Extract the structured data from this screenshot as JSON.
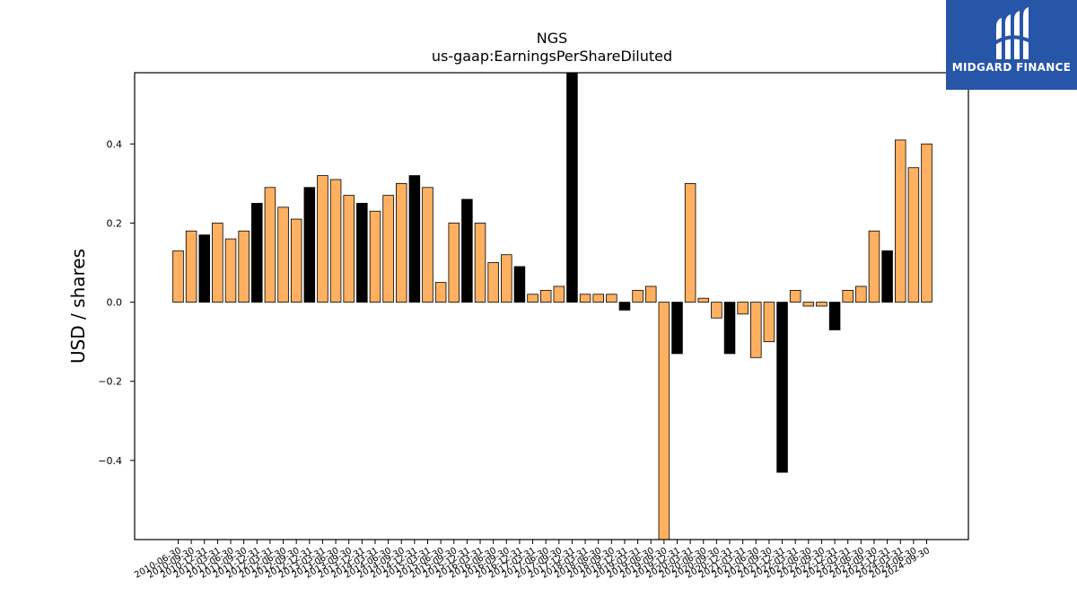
{
  "logo": {
    "text": "MIDGARD FINANCE",
    "icon": "midgard-m-logo-icon",
    "background": "#2756a8"
  },
  "chart_data": {
    "type": "bar",
    "title": "NGS",
    "subtitle": "us-gaap:EarningsPerShareDiluted",
    "ylabel": "USD / shares",
    "xlabel": "",
    "ylim": [
      -0.6,
      0.58
    ],
    "yticks": [
      -0.4,
      -0.2,
      0.0,
      0.2,
      0.4
    ],
    "ytick_labels": [
      "−0.4",
      "−0.2",
      "0.0",
      "0.2",
      "0.4"
    ],
    "colors": {
      "annual": "#000000",
      "quarter": "#ffb060"
    },
    "categories": [
      "2010-06-30",
      "2010-09-30",
      "2010-12-31",
      "2011-03-31",
      "2011-06-30",
      "2011-09-30",
      "2011-12-31",
      "2012-03-31",
      "2012-06-30",
      "2012-09-30",
      "2012-12-31",
      "2013-03-31",
      "2013-06-30",
      "2013-09-30",
      "2013-12-31",
      "2014-03-31",
      "2014-06-30",
      "2014-09-30",
      "2014-12-31",
      "2015-03-31",
      "2015-06-30",
      "2015-09-30",
      "2015-12-31",
      "2016-03-31",
      "2016-06-30",
      "2016-09-30",
      "2016-12-31",
      "2017-03-31",
      "2017-06-30",
      "2017-09-30",
      "2017-12-31",
      "2018-03-31",
      "2018-06-30",
      "2018-09-30",
      "2018-12-31",
      "2019-03-31",
      "2019-06-30",
      "2019-09-30",
      "2019-12-31",
      "2020-03-31",
      "2020-06-30",
      "2020-09-30",
      "2020-12-31",
      "2021-03-31",
      "2021-06-30",
      "2021-09-30",
      "2021-12-31",
      "2022-03-31",
      "2022-06-30",
      "2022-09-30",
      "2022-12-31",
      "2023-03-31",
      "2023-06-30",
      "2023-09-30",
      "2023-12-31",
      "2024-03-31",
      "2024-06-30",
      "2024-09-30"
    ],
    "values": [
      0.13,
      0.18,
      0.17,
      0.2,
      0.16,
      0.18,
      0.25,
      0.29,
      0.24,
      0.21,
      0.29,
      0.32,
      0.31,
      0.27,
      0.25,
      0.23,
      0.27,
      0.3,
      0.32,
      0.29,
      0.05,
      0.2,
      0.26,
      0.2,
      0.1,
      0.12,
      0.09,
      0.02,
      0.03,
      0.04,
      0.6,
      0.02,
      0.02,
      0.02,
      -0.02,
      0.03,
      0.04,
      -0.6,
      -0.13,
      0.3,
      0.01,
      -0.04,
      -0.13,
      -0.03,
      -0.14,
      -0.1,
      -0.43,
      0.03,
      -0.01,
      -0.01,
      -0.07,
      0.03,
      0.04,
      0.18,
      0.13,
      0.41,
      0.34,
      0.4
    ],
    "annual": [
      false,
      false,
      true,
      false,
      false,
      false,
      true,
      false,
      false,
      false,
      true,
      false,
      false,
      false,
      true,
      false,
      false,
      false,
      true,
      false,
      false,
      false,
      true,
      false,
      false,
      false,
      true,
      false,
      false,
      false,
      true,
      false,
      false,
      false,
      true,
      false,
      false,
      false,
      true,
      false,
      false,
      false,
      true,
      false,
      false,
      false,
      true,
      false,
      false,
      false,
      true,
      false,
      false,
      false,
      true,
      false,
      false,
      false
    ]
  }
}
